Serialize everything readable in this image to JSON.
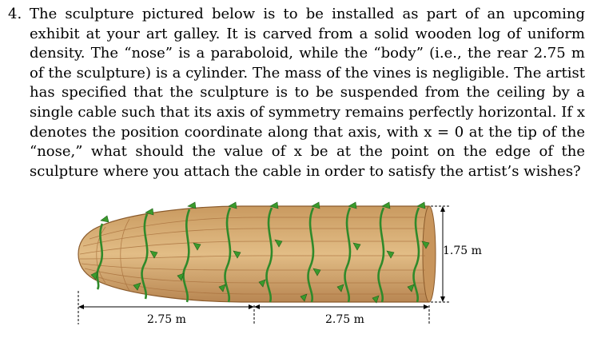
{
  "problem": {
    "number": "4.",
    "text": "The sculpture pictured below is to be installed as part of an upcoming exhibit at your art galley. It is carved from a solid wooden log of uniform density. The “nose” is a paraboloid, while the “body” (i.e., the rear 2.75 m of the sculpture) is a cylinder. The mass of the vines is negligible. The artist has specified that the sculpture is to be suspended from the ceiling by a single cable such that its axis of symmetry remains perfectly horizontal. If x denotes the position coordinate along that axis, with x = 0 at the tip of the “nose,” what should the value of x be at the point on the edge of the sculpture where you attach the cable in order to satisfy the artist’s wishes?"
  },
  "figure": {
    "dim_left": "2.75 m",
    "dim_right": "2.75 m",
    "dim_height": "1.75 m",
    "colors": {
      "wood": "#dcb27a",
      "wood_dark": "#b07a45",
      "vine": "#2f8a2a",
      "leaf": "#3a9a2c"
    }
  }
}
